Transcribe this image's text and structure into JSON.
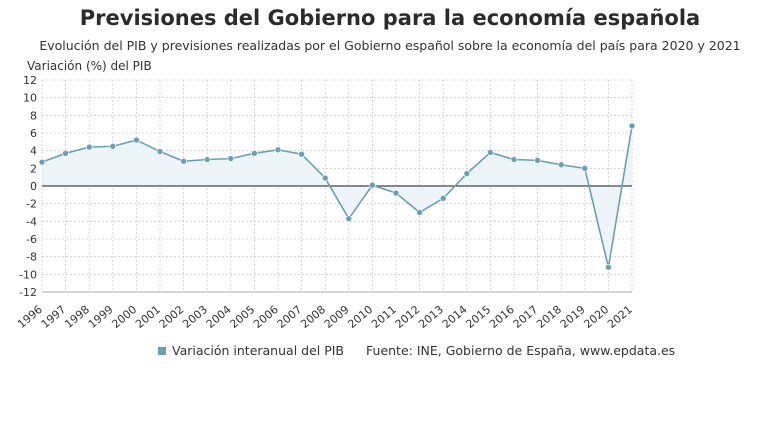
{
  "header": {
    "title": "Previsiones del Gobierno para la economía española",
    "subtitle": "Evolución del PIB y previsiones realizadas por el Gobierno español sobre la economía del país para 2020 y 2021",
    "ylabel": "Variación (%) del PIB"
  },
  "legend": {
    "series_label": "Variación interanual del PIB",
    "source": "Fuente: INE, Gobierno de España, www.epdata.es"
  },
  "colors": {
    "line": "#6a9fb5",
    "fill": "#eef5fa",
    "zero_line": "#444444",
    "grid": "#cccccc"
  },
  "chart_data": {
    "type": "area",
    "x": [
      "1996",
      "1997",
      "1998",
      "1999",
      "2000",
      "2001",
      "2002",
      "2003",
      "2004",
      "2005",
      "2006",
      "2007",
      "2008",
      "2009",
      "2010",
      "2011",
      "2012",
      "2013",
      "2014",
      "2015",
      "2016",
      "2017",
      "2018",
      "2019",
      "2020",
      "2021"
    ],
    "series": [
      {
        "name": "Variación interanual del PIB",
        "values": [
          2.7,
          3.7,
          4.4,
          4.5,
          5.2,
          3.9,
          2.8,
          3.0,
          3.1,
          3.7,
          4.1,
          3.6,
          0.9,
          -3.7,
          0.1,
          -0.8,
          -3.0,
          -1.4,
          1.4,
          3.8,
          3.0,
          2.9,
          2.4,
          2.0,
          -9.2,
          6.8
        ]
      }
    ],
    "yticks": [
      12,
      10,
      8,
      6,
      4,
      2,
      0,
      -2,
      -4,
      -6,
      -8,
      -10,
      -12
    ],
    "ylim": [
      -12,
      12
    ],
    "grid": true
  }
}
